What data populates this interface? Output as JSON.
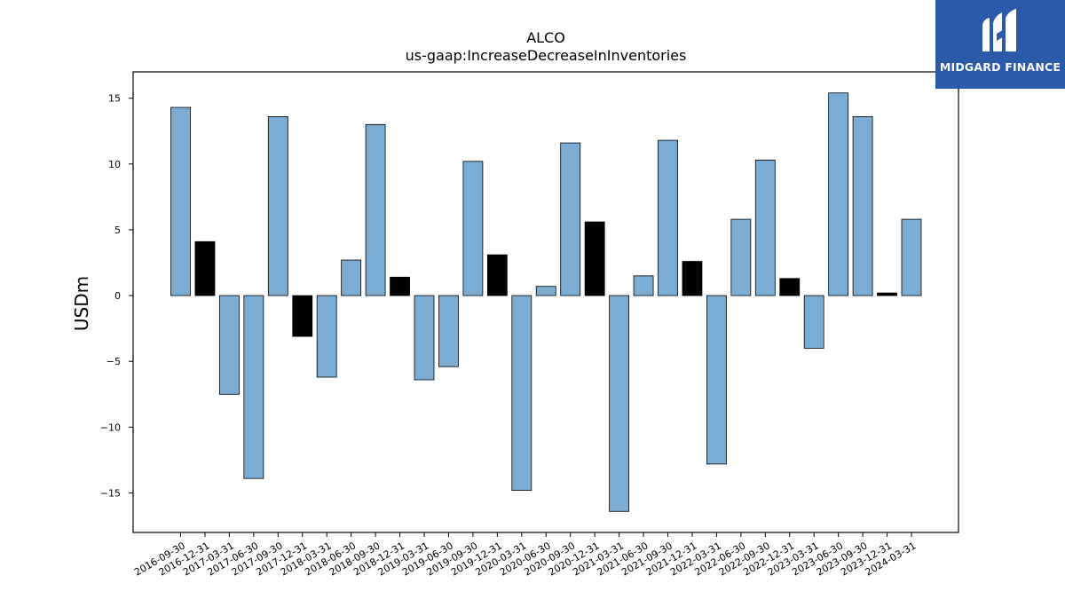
{
  "chart_data": {
    "type": "bar",
    "title": "ALCO",
    "subtitle": "us-gaap:IncreaseDecreaseInInventories",
    "xlabel": "",
    "ylabel": "USDm",
    "ylim": [
      -18,
      17
    ],
    "yticks": [
      -15,
      -10,
      -5,
      0,
      5,
      10,
      15
    ],
    "ytick_labels": [
      "−15",
      "−10",
      "−5",
      "0",
      "5",
      "10",
      "15"
    ],
    "grid": false,
    "categories": [
      "2016-09-30",
      "2016-12-31",
      "2017-03-31",
      "2017-06-30",
      "2017-09-30",
      "2017-12-31",
      "2018-03-31",
      "2018-06-30",
      "2018-09-30",
      "2018-12-31",
      "2019-03-31",
      "2019-06-30",
      "2019-09-30",
      "2019-12-31",
      "2020-03-31",
      "2020-06-30",
      "2020-09-30",
      "2020-12-31",
      "2021-03-31",
      "2021-06-30",
      "2021-09-30",
      "2021-12-31",
      "2022-03-31",
      "2022-06-30",
      "2022-09-30",
      "2022-12-31",
      "2023-03-31",
      "2023-06-30",
      "2023-09-30",
      "2023-12-31",
      "2024-03-31"
    ],
    "values": [
      14.3,
      4.1,
      -7.5,
      -13.9,
      13.6,
      -3.1,
      -6.2,
      2.7,
      13.0,
      1.4,
      -6.4,
      -5.4,
      10.2,
      3.1,
      -14.8,
      0.7,
      11.6,
      5.6,
      -16.4,
      1.5,
      11.8,
      2.6,
      -12.8,
      5.8,
      10.3,
      1.3,
      -4.0,
      15.4,
      13.6,
      0.2,
      5.8
    ],
    "colors": [
      "#7bacd3",
      "#000000",
      "#7bacd3",
      "#7bacd3",
      "#7bacd3",
      "#000000",
      "#7bacd3",
      "#7bacd3",
      "#7bacd3",
      "#000000",
      "#7bacd3",
      "#7bacd3",
      "#7bacd3",
      "#000000",
      "#7bacd3",
      "#7bacd3",
      "#7bacd3",
      "#000000",
      "#7bacd3",
      "#7bacd3",
      "#7bacd3",
      "#000000",
      "#7bacd3",
      "#7bacd3",
      "#7bacd3",
      "#000000",
      "#7bacd3",
      "#7bacd3",
      "#7bacd3",
      "#000000",
      "#7bacd3"
    ]
  },
  "logo": {
    "text": "MIDGARD FINANCE",
    "background": "#2b5aab"
  }
}
